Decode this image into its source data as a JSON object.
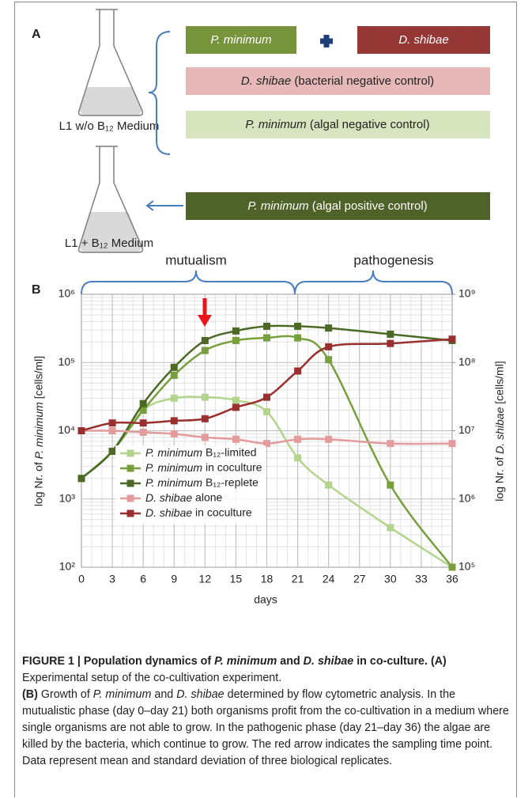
{
  "panel_a": {
    "label": "A",
    "media": [
      "L1 w/o B₁₂ Medium",
      "L1 + B₁₂ Medium"
    ],
    "boxes": [
      "P. minimum",
      "D. shibae",
      "D. shibae (bacterial negative control)",
      "P. minimum (algal negative control)",
      "P. minimum (algal positive control)"
    ]
  },
  "chart_data": {
    "type": "line",
    "panel_label": "B",
    "phases": [
      "mutualism",
      "pathogenesis"
    ],
    "x_label": "days",
    "y_label": "log Nr. of P. minimum [cells/ml]",
    "y2_label": "log Nr. of D. shibae [cells/ml]",
    "log_scale": true,
    "grid": true,
    "minor_grid": true,
    "x": [
      0,
      3,
      6,
      9,
      12,
      15,
      18,
      21,
      24,
      30,
      36
    ],
    "xlim": [
      0,
      36
    ],
    "xticks": [
      0,
      3,
      6,
      9,
      12,
      15,
      18,
      21,
      24,
      27,
      30,
      33,
      36
    ],
    "ylim": [
      100,
      1000000
    ],
    "yticks": [
      {
        "value": 100,
        "label": "10²"
      },
      {
        "value": 1000,
        "label": "10³"
      },
      {
        "value": 10000,
        "label": "10⁴"
      },
      {
        "value": 100000,
        "label": "10⁵"
      },
      {
        "value": 1000000,
        "label": "10⁶"
      }
    ],
    "y2lim": [
      100000,
      1000000000
    ],
    "y2ticks": [
      {
        "value": 100000,
        "label": "10⁵"
      },
      {
        "value": 1000000,
        "label": "10⁶"
      },
      {
        "value": 10000000,
        "label": "10⁷"
      },
      {
        "value": 100000000,
        "label": "10⁸"
      },
      {
        "value": 1000000000,
        "label": "10⁹"
      }
    ],
    "series": [
      {
        "name": "P. minimum B₁₂-limited",
        "color": "#b3d48c",
        "values": [
          2000,
          5000,
          20000,
          30000,
          31000,
          28000,
          19000,
          4000,
          1600,
          380,
          100
        ]
      },
      {
        "name": "P. minimum in coculture",
        "color": "#77a03c",
        "values": [
          2000,
          5000,
          20000,
          65000,
          150000,
          210000,
          230000,
          230000,
          110000,
          1600,
          100
        ]
      },
      {
        "name": "P. minimum B₁₂-replete",
        "color": "#4a6a26",
        "values": [
          2000,
          5000,
          25000,
          85000,
          210000,
          290000,
          340000,
          340000,
          320000,
          260000,
          210000
        ]
      },
      {
        "name": "D. shibae alone",
        "color": "#e39c9b",
        "axis": "y2",
        "values": [
          10000000,
          10000000,
          9500000,
          9000000,
          8000000,
          7500000,
          6500000,
          7500000,
          7500000,
          6500000,
          6500000
        ]
      },
      {
        "name": "D. shibae in coculture",
        "color": "#9a2f2f",
        "axis": "y2",
        "values": [
          10000000,
          13000000,
          13000000,
          14000000,
          15000000,
          22000000,
          31000000,
          75000000,
          170000000,
          190000000,
          220000000
        ]
      }
    ]
  },
  "caption": {
    "title": "FIGURE 1 | Population dynamics of P. minimum and D. shibae in co-culture.",
    "parts": [
      {
        "label": "(A)",
        "text": "Experimental setup of the co-cultivation experiment."
      },
      {
        "label": "(B)",
        "text": "Growth of P. minimum and D. shibae determined by flow cytometric analysis. In the mutualistic phase (day 0–day 21) both organisms profit from the co-cultivation in a medium where single organisms are not able to grow. In the pathogenic phase (day 21–day 36) the algae are killed by the bacteria, which continue to grow. The red arrow indicates the sampling time point. Data represent mean and standard deviation of three biological replicates."
      }
    ]
  }
}
